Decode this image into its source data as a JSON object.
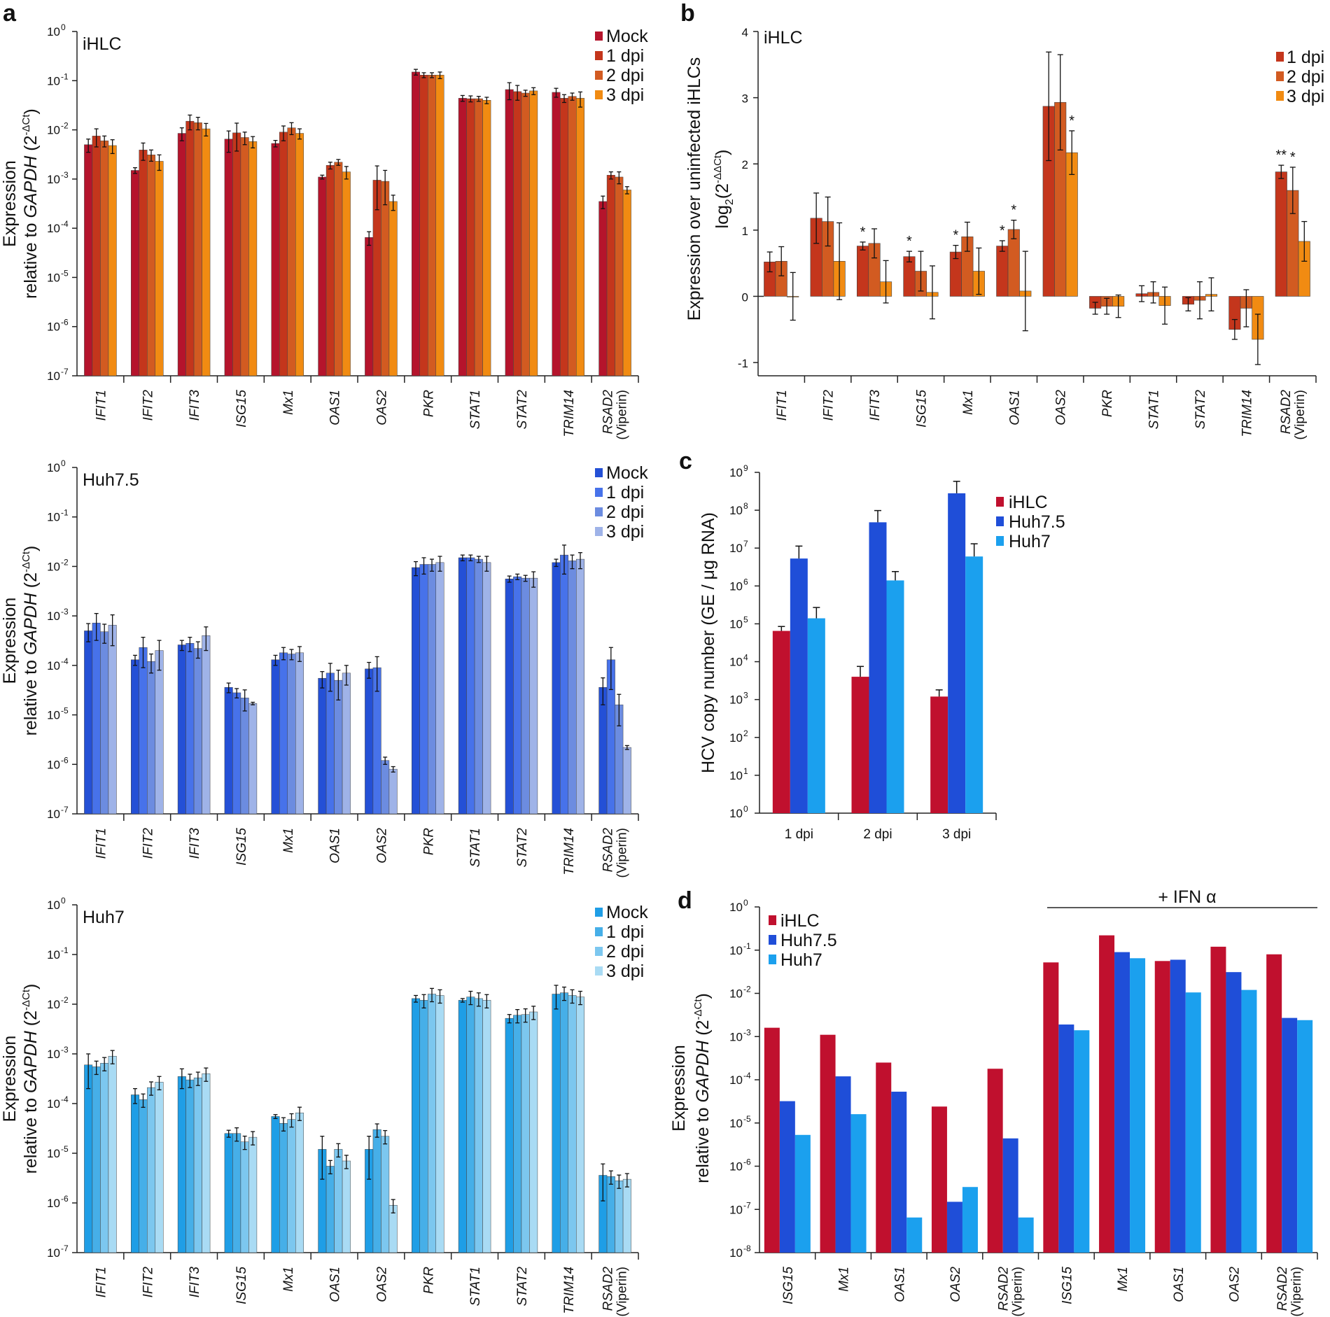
{
  "panel_labels": {
    "a": "a",
    "b": "b",
    "c": "c",
    "d": "d"
  },
  "colors": {
    "red": [
      "#b5142c",
      "#c4361c",
      "#d25b21",
      "#f18b12"
    ],
    "blue": [
      "#2450d6",
      "#4772ea",
      "#6c8ce0",
      "#9fb3e8"
    ],
    "light": [
      "#1f9ee6",
      "#46afe8",
      "#7cc7ef",
      "#a9dbf4"
    ],
    "c": [
      "#c0102e",
      "#1f4ed8",
      "#1ba0ee"
    ]
  },
  "chart_data": [
    {
      "id": "a1",
      "type": "bar",
      "title": "iHLC",
      "ylabel_line1": "Expression",
      "ylabel_line2_pre": "relative to ",
      "ylabel_gene": "GAPDH",
      "ylabel_line2_post": " (2",
      "ylabel_sup": "-ΔCt",
      "ylabel_close": ")",
      "yscale": "log",
      "ylim_exp": [
        -7,
        0
      ],
      "categories": [
        "IFIT1",
        "IFIT2",
        "IFIT3",
        "ISG15",
        "Mx1",
        "OAS1",
        "OAS2",
        "PKR",
        "STAT1",
        "STAT2",
        "TRIM14",
        "RSAD2"
      ],
      "last_category_note": "(Viperin)",
      "series": [
        {
          "name": "Mock",
          "values": [
            0.005,
            0.0015,
            0.0085,
            0.0065,
            0.0053,
            0.0011,
            6.5e-05,
            0.15,
            0.044,
            0.066,
            0.058,
            0.00035
          ],
          "errors": [
            0.0015,
            0.0002,
            0.0025,
            0.003,
            0.0008,
            0.0001,
            2e-05,
            0.02,
            0.006,
            0.025,
            0.012,
            0.0001
          ]
        },
        {
          "name": "1 dpi",
          "values": [
            0.0075,
            0.0039,
            0.015,
            0.0087,
            0.009,
            0.0019,
            0.00095,
            0.13,
            0.043,
            0.06,
            0.044,
            0.0012
          ],
          "errors": [
            0.003,
            0.0015,
            0.005,
            0.005,
            0.003,
            0.0003,
            0.0009,
            0.015,
            0.006,
            0.02,
            0.008,
            0.0002
          ]
        },
        {
          "name": "2 dpi",
          "values": [
            0.006,
            0.0031,
            0.014,
            0.007,
            0.011,
            0.0022,
            0.0009,
            0.13,
            0.043,
            0.056,
            0.048,
            0.0011
          ],
          "errors": [
            0.0015,
            0.0008,
            0.004,
            0.002,
            0.003,
            0.0003,
            0.0006,
            0.015,
            0.005,
            0.008,
            0.008,
            0.0003
          ]
        },
        {
          "name": "3 dpi",
          "values": [
            0.0048,
            0.0023,
            0.0105,
            0.0058,
            0.0085,
            0.0014,
            0.00035,
            0.13,
            0.04,
            0.062,
            0.044,
            0.0006
          ],
          "errors": [
            0.0015,
            0.0008,
            0.003,
            0.0015,
            0.002,
            0.0004,
            0.00012,
            0.02,
            0.006,
            0.01,
            0.015,
            0.0001
          ]
        }
      ]
    },
    {
      "id": "a2",
      "type": "bar",
      "title": "Huh7.5",
      "ylabel_line1": "Expression",
      "ylabel_line2_pre": "relative to ",
      "ylabel_gene": "GAPDH",
      "ylabel_line2_post": " (2",
      "ylabel_sup": "-ΔCt",
      "ylabel_close": ")",
      "yscale": "log",
      "ylim_exp": [
        -7,
        0
      ],
      "categories": [
        "IFIT1",
        "IFIT2",
        "IFIT3",
        "ISG15",
        "Mx1",
        "OAS1",
        "OAS2",
        "PKR",
        "STAT1",
        "STAT2",
        "TRIM14",
        "RSAD2"
      ],
      "last_category_note": "(Viperin)",
      "series": [
        {
          "name": "Mock",
          "values": [
            0.0005,
            0.00013,
            0.00026,
            3.6e-05,
            0.00013,
            5.5e-05,
            8.5e-05,
            0.0095,
            0.015,
            0.0056,
            0.012,
            3.6e-05
          ],
          "errors": [
            0.0002,
            3e-05,
            6e-05,
            8e-06,
            3e-05,
            2e-05,
            3e-05,
            0.003,
            0.002,
            0.0008,
            0.002,
            2e-05
          ]
        },
        {
          "name": "1 dpi",
          "values": [
            0.00072,
            0.00023,
            0.00028,
            2.8e-05,
            0.00018,
            7e-05,
            9e-05,
            0.011,
            0.015,
            0.0062,
            0.017,
            0.00013
          ],
          "errors": [
            0.0004,
            0.00014,
            9e-05,
            6e-06,
            5e-05,
            4e-05,
            6e-05,
            0.004,
            0.002,
            0.0008,
            0.01,
            0.0001
          ]
        },
        {
          "name": "2 dpi",
          "values": [
            0.00048,
            0.00012,
            0.00022,
            2.2e-05,
            0.00017,
            5e-05,
            1.2e-06,
            0.011,
            0.014,
            0.0058,
            0.013,
            1.6e-05
          ],
          "errors": [
            0.0002,
            5e-05,
            8e-05,
            1e-05,
            4e-05,
            3e-05,
            2e-07,
            0.003,
            0.002,
            0.0008,
            0.004,
            1e-05
          ]
        },
        {
          "name": "3 dpi",
          "values": [
            0.00065,
            0.0002,
            0.0004,
            1.7e-05,
            0.00018,
            7e-05,
            8e-07,
            0.012,
            0.012,
            0.0058,
            0.014,
            2.2e-06
          ],
          "errors": [
            0.0004,
            0.00012,
            0.0002,
            1e-06,
            6e-05,
            3e-05,
            1e-07,
            0.004,
            0.004,
            0.002,
            0.005,
            2e-07
          ]
        }
      ]
    },
    {
      "id": "a3",
      "type": "bar",
      "title": "Huh7",
      "ylabel_line1": "Expression",
      "ylabel_line2_pre": "relative to ",
      "ylabel_gene": "GAPDH",
      "ylabel_line2_post": " (2",
      "ylabel_sup": "-ΔCt",
      "ylabel_close": ")",
      "yscale": "log",
      "ylim_exp": [
        -7,
        0
      ],
      "categories": [
        "IFIT1",
        "IFIT2",
        "IFIT3",
        "ISG15",
        "Mx1",
        "OAS1",
        "OAS2",
        "PKR",
        "STAT1",
        "STAT2",
        "TRIM14",
        "RSAD2"
      ],
      "last_category_note": "(Viperin)",
      "series": [
        {
          "name": "Mock",
          "values": [
            0.0006,
            0.00015,
            0.00035,
            2.5e-05,
            5.5e-05,
            1.2e-05,
            1.2e-05,
            0.013,
            0.012,
            0.0052,
            0.016,
            3.6e-06
          ],
          "errors": [
            0.0004,
            5e-05,
            0.00015,
            4e-06,
            5e-06,
            1e-05,
            1e-05,
            0.002,
            0.001,
            0.001,
            0.008,
            2.5e-06
          ]
        },
        {
          "name": "1 dpi",
          "values": [
            0.00055,
            0.00012,
            0.0003,
            2.5e-05,
            4e-05,
            5.5e-06,
            3e-05,
            0.012,
            0.014,
            0.006,
            0.017,
            3.4e-06
          ]
        },
        {
          "name": "2 dpi",
          "values": [
            0.00065,
            0.00021,
            0.00033,
            1.7e-05,
            4.8e-05,
            1.2e-05,
            2.2e-05,
            0.016,
            0.013,
            0.0062,
            0.015,
            2.8e-06
          ]
        },
        {
          "name": "3 dpi",
          "values": [
            0.0009,
            0.00027,
            0.0004,
            2.1e-05,
            6.5e-05,
            7e-06,
            9e-07,
            0.015,
            0.012,
            0.007,
            0.014,
            3e-06
          ]
        }
      ]
    },
    {
      "id": "b",
      "type": "bar",
      "title": "iHLC",
      "ylabel_line1": "Expression over uninfected iHLCs",
      "ylabel_line2_pre": "log",
      "ylabel_sub": "2",
      "ylabel_line2_mid": "(2",
      "ylabel_sup": "-ΔΔCt",
      "ylabel_close": ")",
      "yscale": "linear",
      "ylim": [
        -1.2,
        4
      ],
      "yticks": [
        4,
        3,
        2,
        1,
        0,
        -1
      ],
      "categories": [
        "IFIT1",
        "IFIT2",
        "IFIT3",
        "ISG15",
        "Mx1",
        "OAS1",
        "OAS2",
        "PKR",
        "STAT1",
        "STAT2",
        "TRIM14",
        "RSAD2"
      ],
      "last_category_note": "(Viperin)",
      "series": [
        {
          "name": "1 dpi",
          "values": [
            0.52,
            1.18,
            0.76,
            0.6,
            0.67,
            0.76,
            2.87,
            -0.18,
            0.04,
            -0.12,
            -0.5,
            1.88
          ],
          "errors": [
            0.15,
            0.38,
            0.06,
            0.08,
            0.1,
            0.08,
            0.82,
            0.09,
            0.12,
            0.1,
            0.15,
            0.1
          ]
        },
        {
          "name": "2 dpi",
          "values": [
            0.53,
            1.13,
            0.8,
            0.38,
            0.9,
            1.01,
            2.93,
            -0.15,
            0.06,
            -0.06,
            -0.18,
            1.6
          ],
          "errors": [
            0.22,
            0.37,
            0.22,
            0.3,
            0.22,
            0.14,
            0.72,
            0.12,
            0.16,
            0.28,
            0.28,
            0.35
          ]
        },
        {
          "name": "3 dpi",
          "values": [
            0.0,
            0.53,
            0.22,
            0.06,
            0.38,
            0.08,
            2.17,
            -0.15,
            -0.14,
            0.03,
            -0.65,
            0.83
          ],
          "errors": [
            0.36,
            0.58,
            0.32,
            0.4,
            0.35,
            0.6,
            0.33,
            0.17,
            0.28,
            0.25,
            0.38,
            0.3
          ]
        }
      ],
      "annotations": [
        {
          "text": "*",
          "category": 2,
          "series": 0
        },
        {
          "text": "*",
          "category": 3,
          "series": 0
        },
        {
          "text": "*",
          "category": 4,
          "series": 0
        },
        {
          "text": "*",
          "category": 5,
          "series": 0
        },
        {
          "text": "*",
          "category": 5,
          "series": 1
        },
        {
          "text": "*",
          "category": 6,
          "series": 2
        },
        {
          "text": "**",
          "category": 11,
          "series": 0
        },
        {
          "text": "*",
          "category": 11,
          "series": 1
        }
      ]
    },
    {
      "id": "c",
      "type": "bar",
      "ylabel": "HCV copy number (GE / μg RNA)",
      "yscale": "log",
      "ylim_exp": [
        0,
        9
      ],
      "categories": [
        "1 dpi",
        "2 dpi",
        "3 dpi"
      ],
      "series": [
        {
          "name": "iHLC",
          "values": [
            65000,
            4000,
            1200
          ],
          "errors": [
            20000,
            3500,
            600
          ]
        },
        {
          "name": "Huh7.5",
          "values": [
            5300000,
            48000000,
            280000000
          ],
          "errors": [
            6000000,
            50000000,
            300000000
          ]
        },
        {
          "name": "Huh7",
          "values": [
            140000,
            1400000,
            6000000
          ],
          "errors": [
            130000,
            1000000,
            7000000
          ]
        }
      ]
    },
    {
      "id": "d",
      "type": "bar",
      "ylabel_line1": "Expression",
      "ylabel_line2_pre": "relative to ",
      "ylabel_gene": "GAPDH",
      "ylabel_line2_post": " (2",
      "ylabel_sup": "-ΔCt",
      "ylabel_close": ")",
      "yscale": "log",
      "ylim_exp": [
        -8,
        0
      ],
      "categories": [
        "ISG15",
        "Mx1",
        "OAS1",
        "OAS2",
        "RSAD2",
        "ISG15",
        "Mx1",
        "OAS1",
        "OAS2",
        "RSAD2"
      ],
      "rsad2_note": "(Viperin)",
      "treatment_label": "+ IFN α",
      "series": [
        {
          "name": "iHLC",
          "values": [
            0.0016,
            0.0011,
            0.00025,
            2.4e-05,
            0.00018,
            0.052,
            0.22,
            0.056,
            0.12,
            0.08
          ]
        },
        {
          "name": "Huh7.5",
          "values": [
            3.2e-05,
            0.00012,
            5.3e-05,
            1.5e-07,
            4.4e-06,
            0.0019,
            0.09,
            0.06,
            0.031,
            0.0027
          ]
        },
        {
          "name": "Huh7",
          "values": [
            5.3e-06,
            1.6e-05,
            6.5e-08,
            3.3e-07,
            6.5e-08,
            0.0014,
            0.065,
            0.0105,
            0.012,
            0.0024
          ]
        }
      ]
    }
  ]
}
